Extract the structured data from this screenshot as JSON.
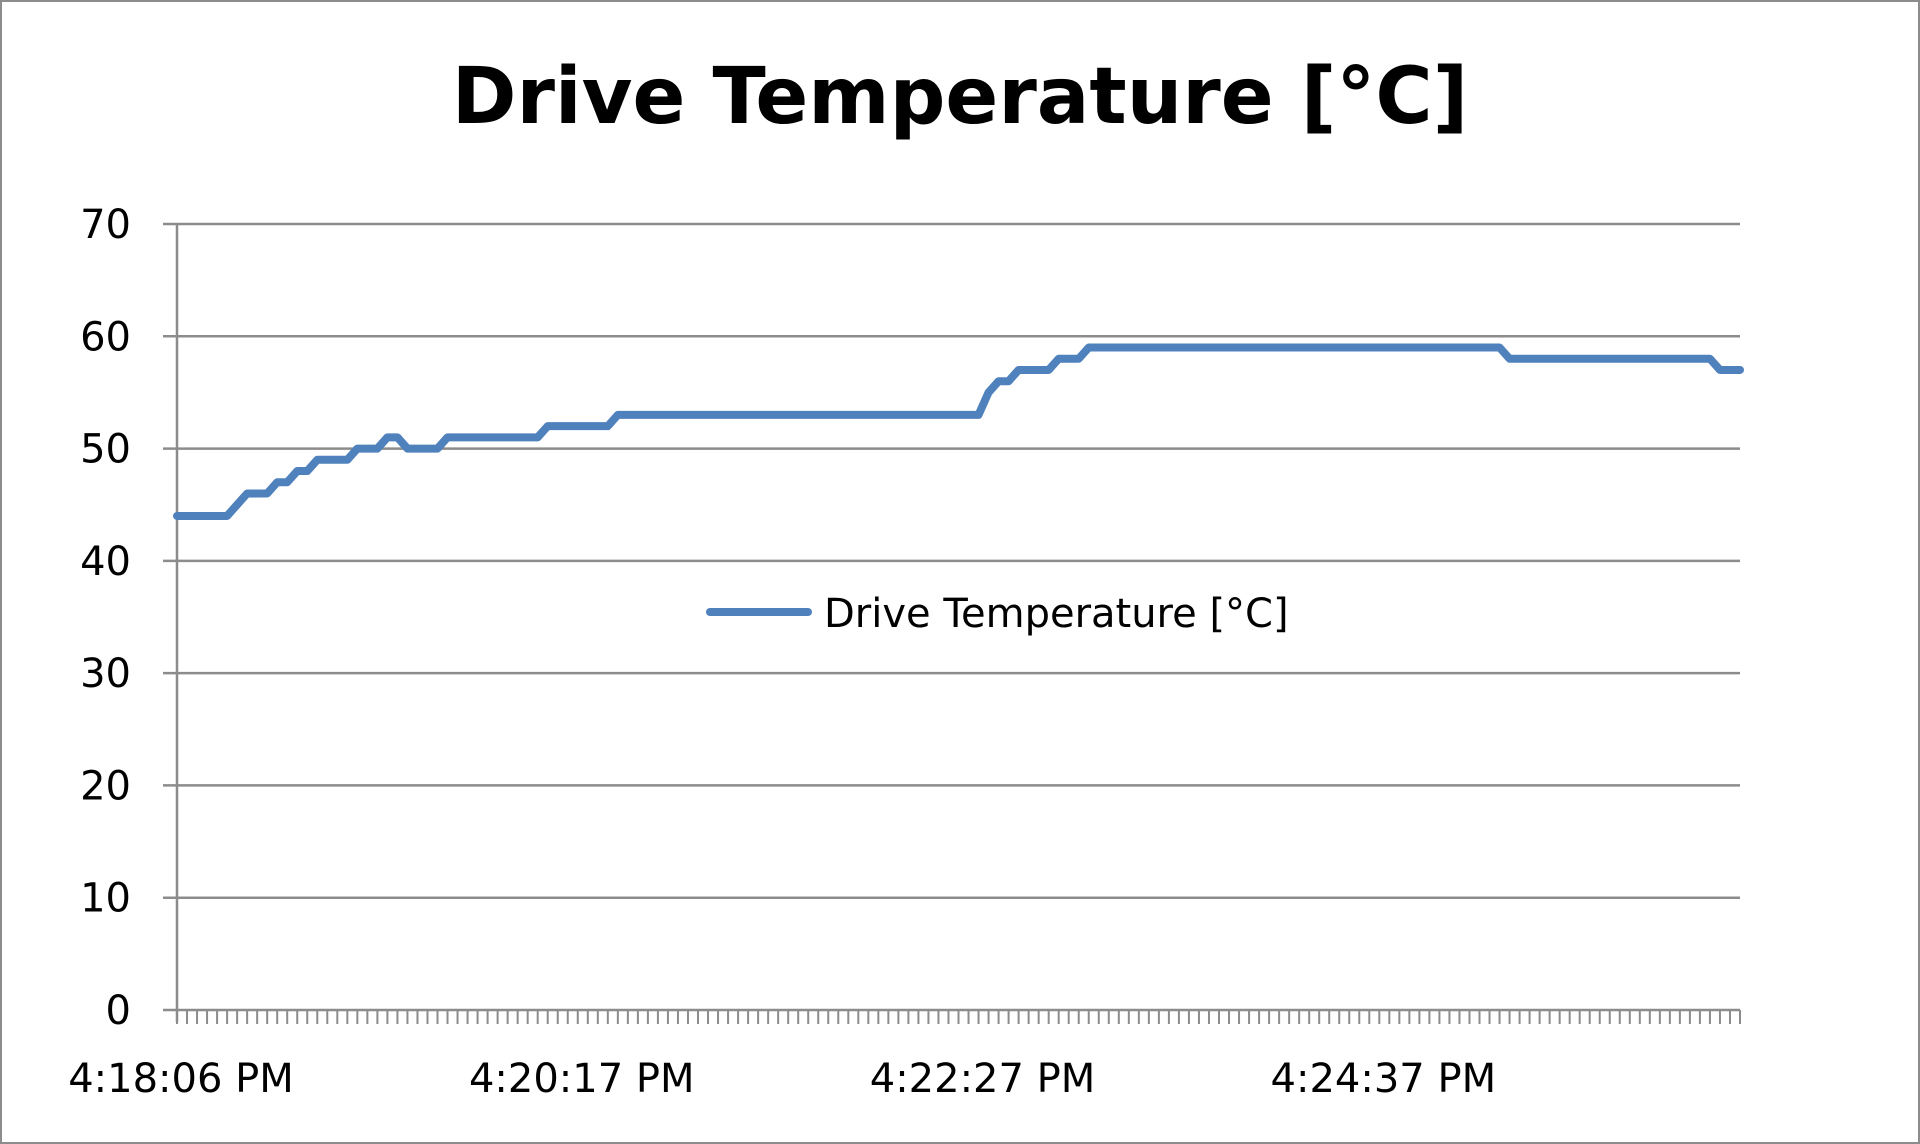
{
  "chart_data": {
    "type": "line",
    "title": "Drive Temperature [°C]",
    "xlabel": "",
    "ylabel": "",
    "ylim": [
      0,
      70
    ],
    "yticks": [
      0,
      10,
      20,
      30,
      40,
      50,
      60,
      70
    ],
    "xticks_labels": [
      "4:18:06 PM",
      "4:20:17 PM",
      "4:22:27 PM",
      "4:24:37 PM"
    ],
    "grid": "horizontal",
    "legend": {
      "placement": "center",
      "entries": [
        "Drive Temperature [°C]"
      ]
    },
    "colors": {
      "series": "#4f81bd",
      "grid": "#8c8c8c",
      "axis": "#8c8c8c"
    },
    "series": [
      {
        "name": "Drive Temperature [°C]",
        "x": [
          "4:18:06 PM",
          "4:18:10 PM",
          "4:18:13 PM",
          "4:18:16 PM",
          "4:18:19 PM",
          "4:18:22 PM",
          "4:18:26 PM",
          "4:18:29 PM",
          "4:18:32 PM",
          "4:18:35 PM",
          "4:18:39 PM",
          "4:18:42 PM",
          "4:18:45 PM",
          "4:18:48 PM",
          "4:18:51 PM",
          "4:18:55 PM",
          "4:18:58 PM",
          "4:19:01 PM",
          "4:19:04 PM",
          "4:19:08 PM",
          "4:19:11 PM",
          "4:19:14 PM",
          "4:19:17 PM",
          "4:19:20 PM",
          "4:19:24 PM",
          "4:19:27 PM",
          "4:19:30 PM",
          "4:19:33 PM",
          "4:19:37 PM",
          "4:19:40 PM",
          "4:19:43 PM",
          "4:19:46 PM",
          "4:19:49 PM",
          "4:19:53 PM",
          "4:19:56 PM",
          "4:19:59 PM",
          "4:20:02 PM",
          "4:20:06 PM",
          "4:20:09 PM",
          "4:20:12 PM",
          "4:20:15 PM",
          "4:20:19 PM",
          "4:20:22 PM",
          "4:20:25 PM",
          "4:20:28 PM",
          "4:20:31 PM",
          "4:20:35 PM",
          "4:20:38 PM",
          "4:20:41 PM",
          "4:20:44 PM",
          "4:20:48 PM",
          "4:20:51 PM",
          "4:20:54 PM",
          "4:20:57 PM",
          "4:21:00 PM",
          "4:21:04 PM",
          "4:21:07 PM",
          "4:21:10 PM",
          "4:21:13 PM",
          "4:21:17 PM",
          "4:21:20 PM",
          "4:21:23 PM",
          "4:21:26 PM",
          "4:21:29 PM",
          "4:21:33 PM",
          "4:21:36 PM",
          "4:21:39 PM",
          "4:21:42 PM",
          "4:21:46 PM",
          "4:21:49 PM",
          "4:21:52 PM",
          "4:21:55 PM",
          "4:21:59 PM",
          "4:22:02 PM",
          "4:22:05 PM",
          "4:22:08 PM",
          "4:22:11 PM",
          "4:22:15 PM",
          "4:22:18 PM",
          "4:22:21 PM",
          "4:22:24 PM",
          "4:22:28 PM",
          "4:22:31 PM",
          "4:22:34 PM",
          "4:22:37 PM",
          "4:22:40 PM",
          "4:22:44 PM",
          "4:22:47 PM",
          "4:22:50 PM",
          "4:22:53 PM",
          "4:22:57 PM",
          "4:23:00 PM",
          "4:23:03 PM",
          "4:23:06 PM",
          "4:23:09 PM",
          "4:23:13 PM",
          "4:23:16 PM",
          "4:23:19 PM",
          "4:23:22 PM",
          "4:23:26 PM",
          "4:23:29 PM",
          "4:23:32 PM",
          "4:23:35 PM",
          "4:23:38 PM",
          "4:23:42 PM",
          "4:23:45 PM",
          "4:23:48 PM",
          "4:23:51 PM",
          "4:23:55 PM",
          "4:23:58 PM",
          "4:24:01 PM",
          "4:24:04 PM",
          "4:24:08 PM",
          "4:24:11 PM",
          "4:24:14 PM",
          "4:24:17 PM",
          "4:24:20 PM",
          "4:24:24 PM",
          "4:24:27 PM",
          "4:24:30 PM",
          "4:24:33 PM",
          "4:24:37 PM",
          "4:24:40 PM",
          "4:24:43 PM",
          "4:24:46 PM",
          "4:24:49 PM",
          "4:24:53 PM",
          "4:24:56 PM",
          "4:24:59 PM",
          "4:25:02 PM",
          "4:25:06 PM",
          "4:25:09 PM",
          "4:25:12 PM",
          "4:25:15 PM",
          "4:25:18 PM",
          "4:25:22 PM",
          "4:25:25 PM",
          "4:25:28 PM",
          "4:25:31 PM",
          "4:25:35 PM",
          "4:25:38 PM",
          "4:25:41 PM",
          "4:25:44 PM",
          "4:25:47 PM",
          "4:25:51 PM",
          "4:25:54 PM",
          "4:25:57 PM",
          "4:26:00 PM",
          "4:26:04 PM",
          "4:26:07 PM",
          "4:26:10 PM",
          "4:26:13 PM",
          "4:26:17 PM",
          "4:26:20 PM",
          "4:26:23 PM",
          "4:26:26 PM",
          "4:26:29 PM"
        ],
        "values": [
          44,
          44,
          44,
          44,
          44,
          44,
          45,
          46,
          46,
          46,
          47,
          47,
          48,
          48,
          49,
          49,
          49,
          49,
          50,
          50,
          50,
          51,
          51,
          50,
          50,
          50,
          50,
          51,
          51,
          51,
          51,
          51,
          51,
          51,
          51,
          51,
          51,
          52,
          52,
          52,
          52,
          52,
          52,
          52,
          53,
          53,
          53,
          53,
          53,
          53,
          53,
          53,
          53,
          53,
          53,
          53,
          53,
          53,
          53,
          53,
          53,
          53,
          53,
          53,
          53,
          53,
          53,
          53,
          53,
          53,
          53,
          53,
          53,
          53,
          53,
          53,
          53,
          53,
          53,
          53,
          53,
          55,
          56,
          56,
          57,
          57,
          57,
          57,
          58,
          58,
          58,
          59,
          59,
          59,
          59,
          59,
          59,
          59,
          59,
          59,
          59,
          59,
          59,
          59,
          59,
          59,
          59,
          59,
          59,
          59,
          59,
          59,
          59,
          59,
          59,
          59,
          59,
          59,
          59,
          59,
          59,
          59,
          59,
          59,
          59,
          59,
          59,
          59,
          59,
          59,
          59,
          59,
          59,
          58,
          58,
          58,
          58,
          58,
          58,
          58,
          58,
          58,
          58,
          58,
          58,
          58,
          58,
          58,
          58,
          58,
          58,
          58,
          58,
          58,
          57,
          57,
          57
        ]
      }
    ]
  }
}
